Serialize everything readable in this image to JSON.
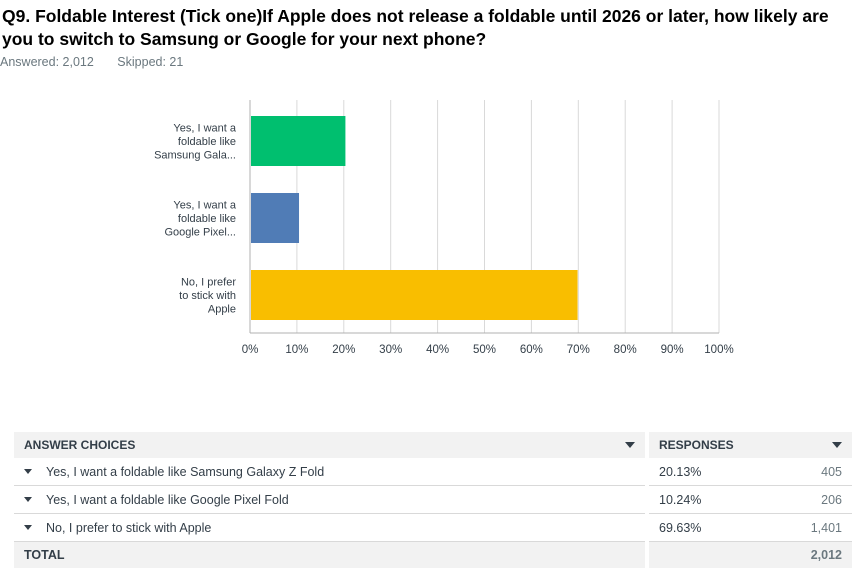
{
  "question": {
    "title": "Q9. Foldable Interest (Tick one)If Apple does not release a foldable until 2026 or later, how likely are you to switch to Samsung or Google for your next phone?",
    "answered": "Answered: 2,012",
    "skipped": "Skipped: 21"
  },
  "chart_data": {
    "type": "bar",
    "orientation": "horizontal",
    "categories": [
      [
        "Yes, I want a",
        "foldable like",
        "Samsung Gala..."
      ],
      [
        "Yes, I want a",
        "foldable like",
        "Google Pixel..."
      ],
      [
        "No, I prefer",
        "to stick with",
        "Apple"
      ]
    ],
    "values": [
      20.13,
      10.24,
      69.63
    ],
    "colors": [
      "#00bf6f",
      "#507cb6",
      "#f9be00"
    ],
    "xlim": [
      0,
      100
    ],
    "xticks": [
      "0%",
      "10%",
      "20%",
      "30%",
      "40%",
      "50%",
      "60%",
      "70%",
      "80%",
      "90%",
      "100%"
    ],
    "grid": true
  },
  "table": {
    "headers": {
      "choices": "ANSWER CHOICES",
      "responses": "RESPONSES"
    },
    "rows": [
      {
        "label": "Yes, I want a foldable like Samsung Galaxy Z Fold",
        "pct": "20.13%",
        "count": "405"
      },
      {
        "label": "Yes, I want a foldable like Google Pixel Fold",
        "pct": "10.24%",
        "count": "206"
      },
      {
        "label": "No, I prefer to stick with Apple",
        "pct": "69.63%",
        "count": "1,401"
      }
    ],
    "total_label": "TOTAL",
    "total": "2,012"
  }
}
